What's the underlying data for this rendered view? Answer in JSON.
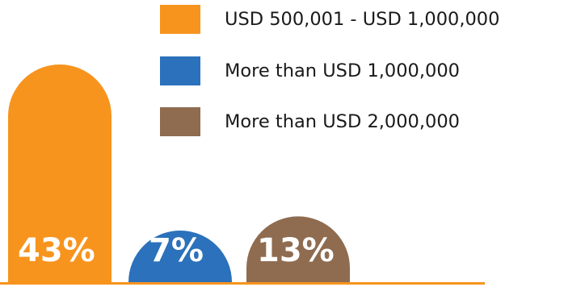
{
  "chart_data": {
    "type": "bar",
    "title": "",
    "xlabel": "",
    "ylabel": "",
    "ylim": [
      0,
      43
    ],
    "grid": false,
    "legend_position": "top-right",
    "series": [
      {
        "name": "USD 500,001 - USD 1,000,000",
        "value": 43,
        "value_label": "43%",
        "color": "#F7941E"
      },
      {
        "name": "More than USD 1,000,000",
        "value": 7,
        "value_label": "7%",
        "color": "#2B71BB"
      },
      {
        "name": "More than USD 2,000,000",
        "value": 13,
        "value_label": "13%",
        "color": "#8F6C50"
      }
    ],
    "baseline_color": "#F7941E"
  }
}
